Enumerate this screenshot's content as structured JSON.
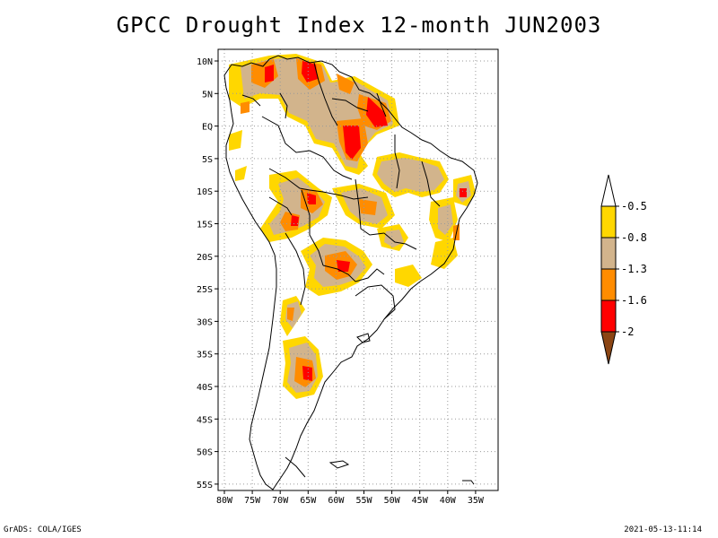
{
  "title": "GPCC Drought Index 12-month JUN2003",
  "footer_left": "GrADS: COLA/IGES",
  "footer_right": "2021-05-13-11:14",
  "lat_ticks": [
    "10N",
    "5N",
    "EQ",
    "5S",
    "10S",
    "15S",
    "20S",
    "25S",
    "30S",
    "35S",
    "40S",
    "45S",
    "50S",
    "55S"
  ],
  "lon_ticks": [
    "80W",
    "75W",
    "70W",
    "65W",
    "60W",
    "55W",
    "50W",
    "45W",
    "40W",
    "35W"
  ],
  "legend": {
    "labels": [
      "-0.5",
      "-0.8",
      "-1.3",
      "-1.6",
      "-2"
    ],
    "colors": [
      "#ffffff",
      "#ffd700",
      "#d2b48c",
      "#ff8c00",
      "#ff0000",
      "#8b4513"
    ]
  },
  "colors": {
    "land": "#ffffff",
    "border": "#000000",
    "grid": "#9a9a9a"
  }
}
